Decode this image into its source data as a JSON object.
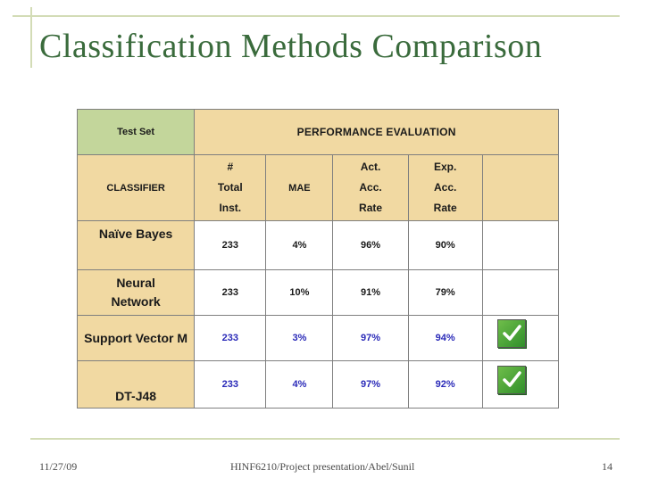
{
  "slide": {
    "title": "Classification Methods Comparison",
    "footer": {
      "date": "11/27/09",
      "center": "HINF6210/Project presentation/Abel/Sunil",
      "page": "14"
    }
  },
  "table": {
    "header": {
      "test_set": "Test Set",
      "performance": "PERFORMANCE EVALUATION"
    },
    "subheader": {
      "classifier": "CLASSIFIER",
      "total_inst": [
        "#",
        "Total",
        "Inst."
      ],
      "mae": "MAE",
      "act_acc_rate": [
        "Act.",
        "Acc.",
        "Rate"
      ],
      "exp_acc_rate": [
        "Exp.",
        "Acc.",
        "Rate"
      ]
    },
    "rows": [
      {
        "classifier": "Naïve Bayes",
        "total": "233",
        "mae": "4%",
        "act": "96%",
        "exp": "90%",
        "selected": false
      },
      {
        "classifier": "Neural Network",
        "total": "233",
        "mae": "10%",
        "act": "91%",
        "exp": "79%",
        "selected": false
      },
      {
        "classifier": "Support Vector M",
        "total": "233",
        "mae": "3%",
        "act": "97%",
        "exp": "94%",
        "selected": true
      },
      {
        "classifier": "DT-J48",
        "total": "233",
        "mae": "4%",
        "act": "97%",
        "exp": "92%",
        "selected": true
      }
    ]
  },
  "colors": {
    "title": "#3a6b3c",
    "header_green": "#c3d69b",
    "header_tan": "#f1d9a2",
    "highlight_blue": "#2a2ab8",
    "check_green": "#2f8f2a"
  },
  "icons": {
    "selected": "checkmark-icon"
  }
}
